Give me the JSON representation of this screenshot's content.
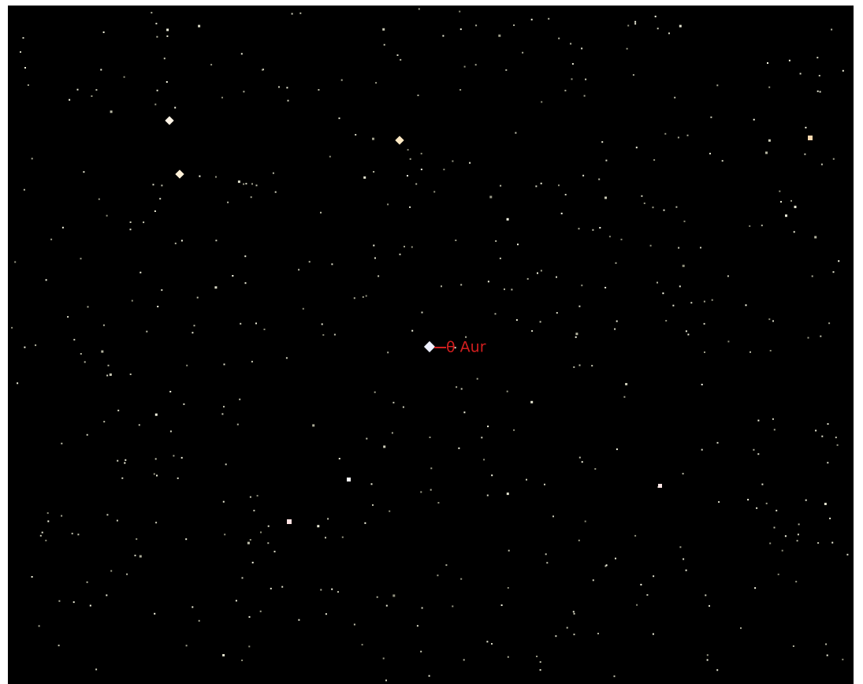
{
  "target_label": "θ Aur"
}
